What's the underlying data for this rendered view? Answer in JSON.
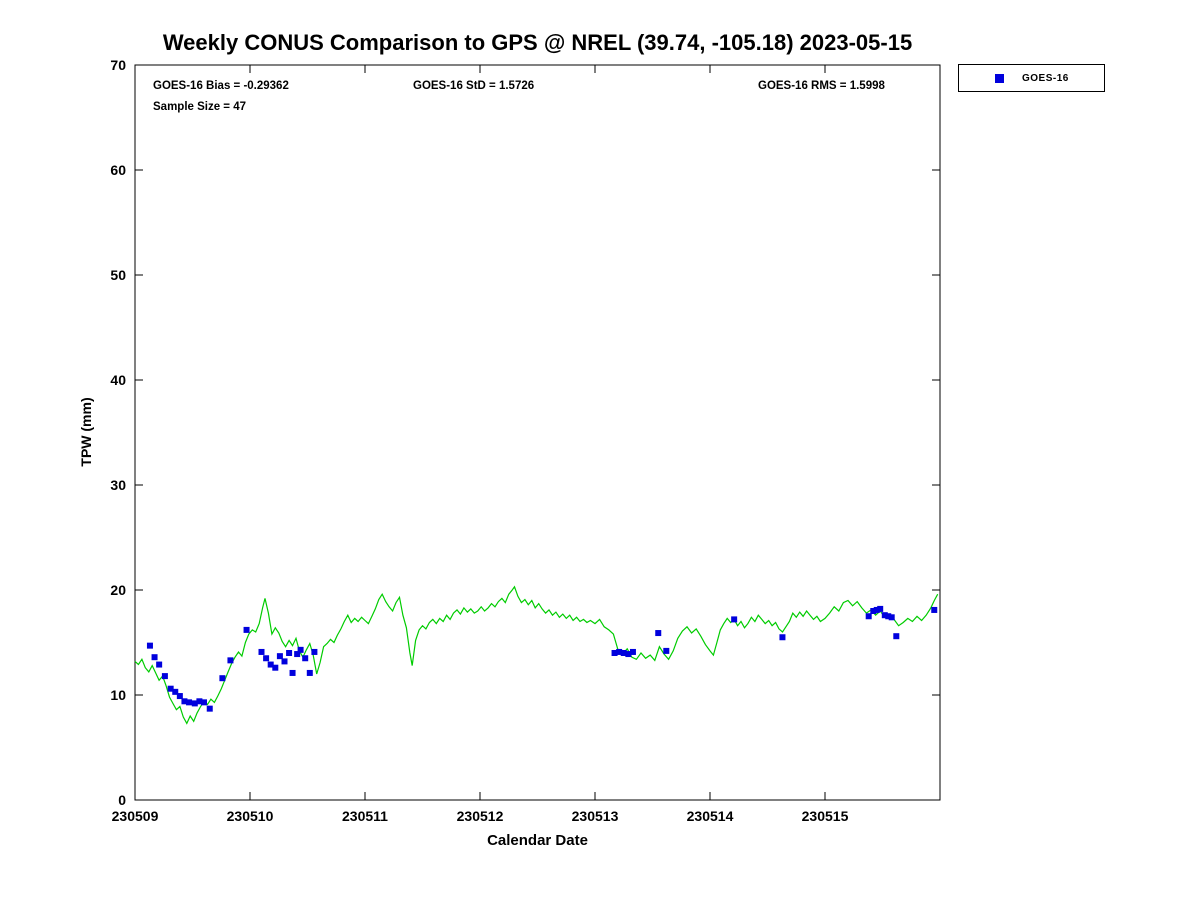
{
  "figure": {
    "title": "Weekly CONUS Comparison to GPS @ NREL (39.74, -105.18) 2023-05-15",
    "stats": {
      "bias": "GOES-16 Bias = -0.29362",
      "std": "GOES-16 StD = 1.5726",
      "rms": "GOES-16 RMS = 1.5998",
      "sample_size": "Sample Size = 47"
    },
    "xlabel": "Calendar Date",
    "ylabel": "TPW (mm)",
    "legend": {
      "label": "GOES-16",
      "marker_color": "#0000dd"
    }
  },
  "chart_data": {
    "type": "line",
    "title": "Weekly CONUS Comparison to GPS @ NREL (39.74, -105.18) 2023-05-15",
    "xlabel": "Calendar Date",
    "ylabel": "TPW (mm)",
    "xlim": [
      230509,
      230516
    ],
    "ylim": [
      0,
      70
    ],
    "x_ticks": [
      230509,
      230510,
      230511,
      230512,
      230513,
      230514,
      230515
    ],
    "y_ticks": [
      0,
      10,
      20,
      30,
      40,
      50,
      60,
      70
    ],
    "grid": false,
    "legend_position": "outside-top-right",
    "series": [
      {
        "name": "GPS",
        "type": "line",
        "color": "#00cc00",
        "points": [
          [
            230509.0,
            13.2
          ],
          [
            230509.03,
            12.9
          ],
          [
            230509.06,
            13.4
          ],
          [
            230509.09,
            12.6
          ],
          [
            230509.12,
            12.2
          ],
          [
            230509.15,
            12.8
          ],
          [
            230509.18,
            12.1
          ],
          [
            230509.21,
            11.4
          ],
          [
            230509.24,
            11.8
          ],
          [
            230509.27,
            10.9
          ],
          [
            230509.3,
            9.8
          ],
          [
            230509.33,
            9.2
          ],
          [
            230509.36,
            8.6
          ],
          [
            230509.39,
            8.9
          ],
          [
            230509.42,
            7.9
          ],
          [
            230509.45,
            7.3
          ],
          [
            230509.48,
            8.0
          ],
          [
            230509.51,
            7.5
          ],
          [
            230509.54,
            8.3
          ],
          [
            230509.57,
            8.9
          ],
          [
            230509.6,
            9.4
          ],
          [
            230509.63,
            9.1
          ],
          [
            230509.66,
            9.6
          ],
          [
            230509.69,
            9.3
          ],
          [
            230509.72,
            9.9
          ],
          [
            230509.75,
            10.6
          ],
          [
            230509.78,
            11.4
          ],
          [
            230509.81,
            12.2
          ],
          [
            230509.84,
            13.0
          ],
          [
            230509.87,
            13.6
          ],
          [
            230509.9,
            14.1
          ],
          [
            230509.93,
            13.7
          ],
          [
            230509.96,
            15.0
          ],
          [
            230509.99,
            15.8
          ],
          [
            230510.02,
            16.2
          ],
          [
            230510.05,
            16.0
          ],
          [
            230510.08,
            16.8
          ],
          [
            230510.11,
            18.3
          ],
          [
            230510.13,
            19.2
          ],
          [
            230510.16,
            17.8
          ],
          [
            230510.19,
            15.8
          ],
          [
            230510.22,
            16.4
          ],
          [
            230510.25,
            15.9
          ],
          [
            230510.28,
            15.1
          ],
          [
            230510.31,
            14.6
          ],
          [
            230510.34,
            15.2
          ],
          [
            230510.37,
            14.7
          ],
          [
            230510.4,
            15.4
          ],
          [
            230510.43,
            14.2
          ],
          [
            230510.46,
            13.6
          ],
          [
            230510.49,
            14.3
          ],
          [
            230510.52,
            14.9
          ],
          [
            230510.55,
            13.8
          ],
          [
            230510.58,
            12.0
          ],
          [
            230510.61,
            13.1
          ],
          [
            230510.64,
            14.6
          ],
          [
            230510.67,
            14.9
          ],
          [
            230510.7,
            15.3
          ],
          [
            230510.73,
            15.0
          ],
          [
            230510.76,
            15.7
          ],
          [
            230510.79,
            16.3
          ],
          [
            230510.82,
            17.0
          ],
          [
            230510.85,
            17.6
          ],
          [
            230510.88,
            16.9
          ],
          [
            230510.91,
            17.3
          ],
          [
            230510.94,
            17.0
          ],
          [
            230510.97,
            17.4
          ],
          [
            230511.0,
            17.1
          ],
          [
            230511.03,
            16.8
          ],
          [
            230511.06,
            17.5
          ],
          [
            230511.09,
            18.2
          ],
          [
            230511.12,
            19.1
          ],
          [
            230511.15,
            19.6
          ],
          [
            230511.18,
            18.9
          ],
          [
            230511.21,
            18.4
          ],
          [
            230511.24,
            18.0
          ],
          [
            230511.27,
            18.8
          ],
          [
            230511.3,
            19.3
          ],
          [
            230511.33,
            17.6
          ],
          [
            230511.36,
            16.4
          ],
          [
            230511.39,
            14.0
          ],
          [
            230511.41,
            12.8
          ],
          [
            230511.44,
            15.2
          ],
          [
            230511.47,
            16.2
          ],
          [
            230511.5,
            16.6
          ],
          [
            230511.53,
            16.3
          ],
          [
            230511.56,
            16.9
          ],
          [
            230511.59,
            17.2
          ],
          [
            230511.62,
            16.8
          ],
          [
            230511.65,
            17.3
          ],
          [
            230511.68,
            17.0
          ],
          [
            230511.71,
            17.6
          ],
          [
            230511.74,
            17.2
          ],
          [
            230511.77,
            17.8
          ],
          [
            230511.8,
            18.1
          ],
          [
            230511.83,
            17.7
          ],
          [
            230511.86,
            18.3
          ],
          [
            230511.89,
            17.9
          ],
          [
            230511.92,
            18.2
          ],
          [
            230511.95,
            17.8
          ],
          [
            230511.98,
            18.0
          ],
          [
            230512.01,
            18.4
          ],
          [
            230512.04,
            18.0
          ],
          [
            230512.07,
            18.3
          ],
          [
            230512.1,
            18.7
          ],
          [
            230512.13,
            18.4
          ],
          [
            230512.16,
            18.9
          ],
          [
            230512.19,
            19.2
          ],
          [
            230512.22,
            18.8
          ],
          [
            230512.25,
            19.6
          ],
          [
            230512.28,
            20.0
          ],
          [
            230512.3,
            20.3
          ],
          [
            230512.33,
            19.4
          ],
          [
            230512.36,
            18.8
          ],
          [
            230512.39,
            19.1
          ],
          [
            230512.42,
            18.6
          ],
          [
            230512.45,
            19.0
          ],
          [
            230512.48,
            18.3
          ],
          [
            230512.51,
            18.7
          ],
          [
            230512.54,
            18.2
          ],
          [
            230512.57,
            17.8
          ],
          [
            230512.6,
            18.1
          ],
          [
            230512.63,
            17.6
          ],
          [
            230512.66,
            17.9
          ],
          [
            230512.69,
            17.4
          ],
          [
            230512.72,
            17.7
          ],
          [
            230512.75,
            17.3
          ],
          [
            230512.78,
            17.6
          ],
          [
            230512.81,
            17.1
          ],
          [
            230512.84,
            17.4
          ],
          [
            230512.87,
            17.0
          ],
          [
            230512.9,
            17.2
          ],
          [
            230512.93,
            16.9
          ],
          [
            230512.96,
            17.1
          ],
          [
            230513.0,
            16.8
          ],
          [
            230513.04,
            17.2
          ],
          [
            230513.08,
            16.5
          ],
          [
            230513.12,
            16.2
          ],
          [
            230513.16,
            15.8
          ],
          [
            230513.2,
            14.3
          ],
          [
            230513.24,
            13.9
          ],
          [
            230513.28,
            14.4
          ],
          [
            230513.32,
            13.6
          ],
          [
            230513.36,
            13.4
          ],
          [
            230513.4,
            14.0
          ],
          [
            230513.44,
            13.5
          ],
          [
            230513.48,
            13.8
          ],
          [
            230513.52,
            13.3
          ],
          [
            230513.56,
            14.6
          ],
          [
            230513.6,
            13.9
          ],
          [
            230513.64,
            13.4
          ],
          [
            230513.68,
            14.2
          ],
          [
            230513.72,
            15.4
          ],
          [
            230513.76,
            16.1
          ],
          [
            230513.8,
            16.5
          ],
          [
            230513.84,
            15.9
          ],
          [
            230513.88,
            16.3
          ],
          [
            230513.92,
            15.6
          ],
          [
            230513.96,
            14.8
          ],
          [
            230514.0,
            14.2
          ],
          [
            230514.03,
            13.8
          ],
          [
            230514.06,
            15.0
          ],
          [
            230514.09,
            16.2
          ],
          [
            230514.12,
            16.8
          ],
          [
            230514.15,
            17.3
          ],
          [
            230514.18,
            16.9
          ],
          [
            230514.21,
            17.2
          ],
          [
            230514.24,
            16.6
          ],
          [
            230514.27,
            17.0
          ],
          [
            230514.3,
            16.4
          ],
          [
            230514.33,
            16.8
          ],
          [
            230514.36,
            17.4
          ],
          [
            230514.39,
            17.0
          ],
          [
            230514.42,
            17.6
          ],
          [
            230514.45,
            17.2
          ],
          [
            230514.48,
            16.8
          ],
          [
            230514.51,
            17.1
          ],
          [
            230514.54,
            16.6
          ],
          [
            230514.57,
            16.9
          ],
          [
            230514.6,
            16.3
          ],
          [
            230514.63,
            16.0
          ],
          [
            230514.66,
            16.5
          ],
          [
            230514.69,
            17.0
          ],
          [
            230514.72,
            17.8
          ],
          [
            230514.75,
            17.4
          ],
          [
            230514.78,
            17.9
          ],
          [
            230514.81,
            17.5
          ],
          [
            230514.84,
            18.0
          ],
          [
            230514.87,
            17.6
          ],
          [
            230514.9,
            17.2
          ],
          [
            230514.93,
            17.5
          ],
          [
            230514.96,
            17.0
          ],
          [
            230515.0,
            17.3
          ],
          [
            230515.04,
            17.8
          ],
          [
            230515.08,
            18.4
          ],
          [
            230515.12,
            18.0
          ],
          [
            230515.16,
            18.8
          ],
          [
            230515.2,
            19.0
          ],
          [
            230515.24,
            18.5
          ],
          [
            230515.28,
            18.9
          ],
          [
            230515.32,
            18.3
          ],
          [
            230515.36,
            17.8
          ],
          [
            230515.4,
            18.1
          ],
          [
            230515.44,
            17.6
          ],
          [
            230515.48,
            18.0
          ],
          [
            230515.52,
            17.4
          ],
          [
            230515.56,
            17.7
          ],
          [
            230515.6,
            17.2
          ],
          [
            230515.64,
            16.6
          ],
          [
            230515.68,
            16.9
          ],
          [
            230515.72,
            17.3
          ],
          [
            230515.76,
            17.0
          ],
          [
            230515.8,
            17.5
          ],
          [
            230515.84,
            17.1
          ],
          [
            230515.88,
            17.6
          ],
          [
            230515.92,
            18.3
          ],
          [
            230515.95,
            19.0
          ],
          [
            230515.98,
            19.6
          ]
        ]
      },
      {
        "name": "GOES-16",
        "type": "scatter",
        "marker": "square",
        "color": "#0000dd",
        "points": [
          [
            230509.13,
            14.7
          ],
          [
            230509.17,
            13.6
          ],
          [
            230509.21,
            12.9
          ],
          [
            230509.26,
            11.8
          ],
          [
            230509.31,
            10.6
          ],
          [
            230509.35,
            10.3
          ],
          [
            230509.39,
            9.9
          ],
          [
            230509.43,
            9.4
          ],
          [
            230509.47,
            9.3
          ],
          [
            230509.52,
            9.2
          ],
          [
            230509.56,
            9.4
          ],
          [
            230509.6,
            9.3
          ],
          [
            230509.65,
            8.7
          ],
          [
            230509.76,
            11.6
          ],
          [
            230509.83,
            13.3
          ],
          [
            230509.97,
            16.2
          ],
          [
            230510.1,
            14.1
          ],
          [
            230510.14,
            13.5
          ],
          [
            230510.18,
            12.9
          ],
          [
            230510.22,
            12.6
          ],
          [
            230510.26,
            13.7
          ],
          [
            230510.3,
            13.2
          ],
          [
            230510.34,
            14.0
          ],
          [
            230510.37,
            12.1
          ],
          [
            230510.41,
            13.9
          ],
          [
            230510.44,
            14.3
          ],
          [
            230510.48,
            13.5
          ],
          [
            230510.52,
            12.1
          ],
          [
            230510.56,
            14.1
          ],
          [
            230513.17,
            14.0
          ],
          [
            230513.21,
            14.1
          ],
          [
            230513.25,
            14.0
          ],
          [
            230513.29,
            13.9
          ],
          [
            230513.33,
            14.1
          ],
          [
            230513.55,
            15.9
          ],
          [
            230513.62,
            14.2
          ],
          [
            230514.21,
            17.2
          ],
          [
            230514.63,
            15.5
          ],
          [
            230515.38,
            17.5
          ],
          [
            230515.42,
            18.0
          ],
          [
            230515.45,
            18.1
          ],
          [
            230515.48,
            18.2
          ],
          [
            230515.52,
            17.6
          ],
          [
            230515.55,
            17.5
          ],
          [
            230515.58,
            17.4
          ],
          [
            230515.62,
            15.6
          ],
          [
            230515.95,
            18.1
          ]
        ]
      }
    ]
  }
}
